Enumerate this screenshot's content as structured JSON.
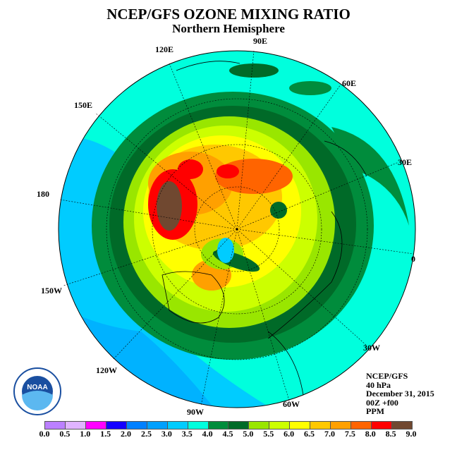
{
  "title": "NCEP/GFS OZONE MIXING RATIO",
  "subtitle": "Northern Hemisphere",
  "longitude_labels": {
    "e90": "90E",
    "e60": "60E",
    "e30": "30E",
    "zero": "0",
    "w30": "30W",
    "w60": "60W",
    "w90": "90W",
    "w120": "120W",
    "w150": "150W",
    "d180": "180",
    "e150": "150E",
    "e120": "120E"
  },
  "info": {
    "model": "NCEP/GFS",
    "level": "40 hPa",
    "date": "December 31, 2015",
    "time": "00Z +f00",
    "units": "PPM"
  },
  "logo_text": "NOAA",
  "legend": {
    "levels": [
      "0.0",
      "0.5",
      "1.0",
      "1.5",
      "2.0",
      "2.5",
      "3.0",
      "3.5",
      "4.0",
      "4.5",
      "5.0",
      "5.5",
      "6.0",
      "6.5",
      "7.0",
      "7.5",
      "8.0",
      "8.5",
      "9.0"
    ],
    "colors": [
      "#bb80ff",
      "#e0b4ff",
      "#ff00ff",
      "#1400ff",
      "#0080ff",
      "#00a0ff",
      "#00ccff",
      "#00ffdd",
      "#008c3c",
      "#006a28",
      "#99e600",
      "#ccff00",
      "#ffff00",
      "#ffc800",
      "#ffa000",
      "#ff6400",
      "#ff0000",
      "#704830"
    ]
  }
}
